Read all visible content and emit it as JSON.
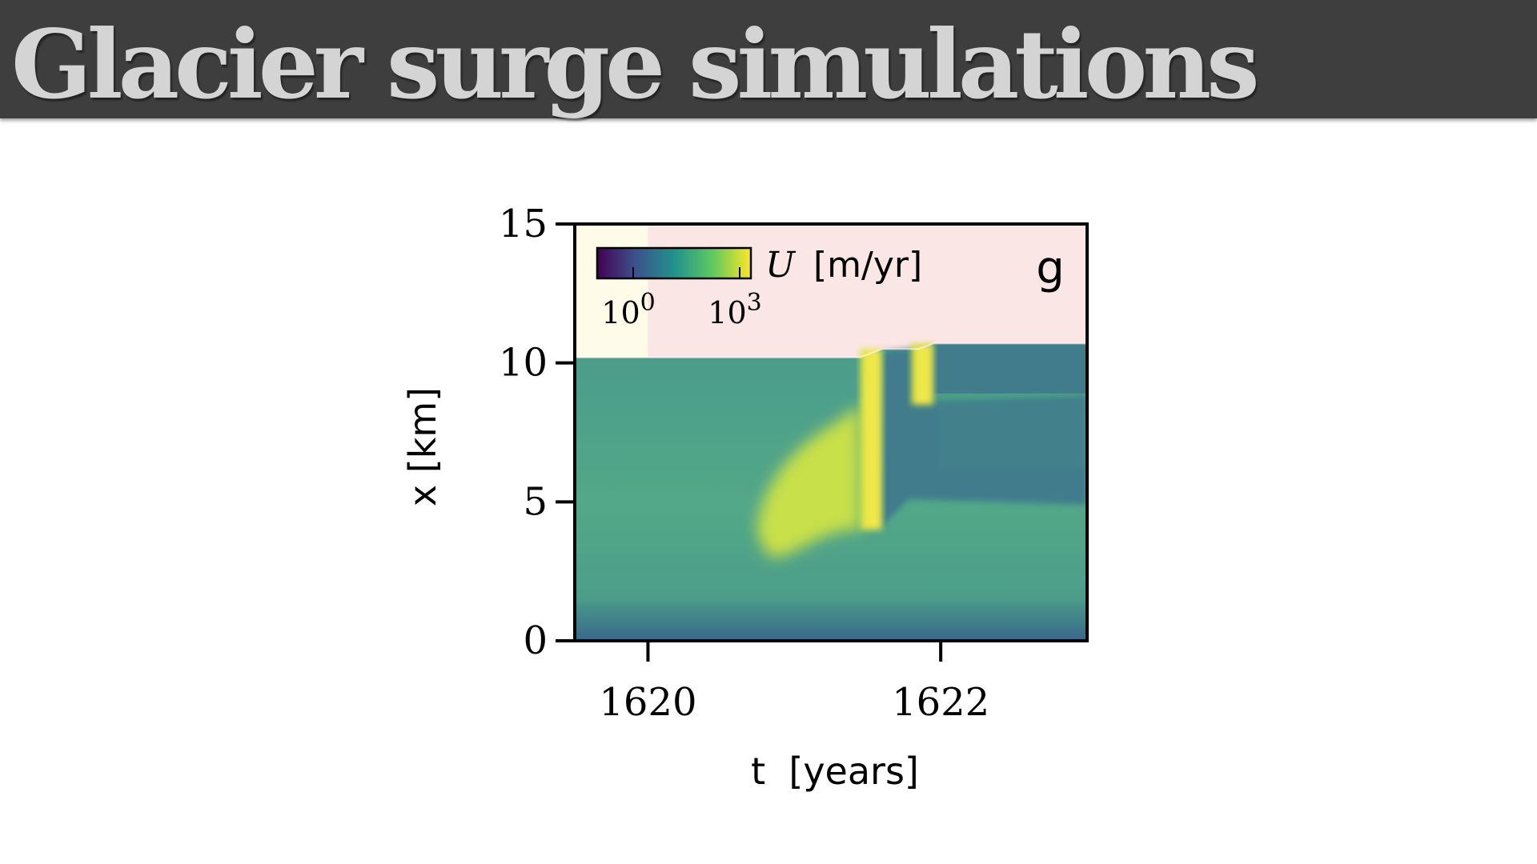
{
  "slide": {
    "title": "Glacier surge simulations"
  },
  "colors": {
    "title_bar": "#3e3e3e",
    "title_text": "#d4d4d4",
    "background_region_left": "#fefbe9",
    "background_region_right": "#fbe6e6",
    "ice_base": "#4ea488",
    "ice_bed": "#3d6f8a",
    "surge": "#c8e049",
    "surge_peak": "#f4e84a",
    "downstream_slow": "#417c8c"
  },
  "chart_data": {
    "type": "heatmap",
    "panel_label": "g",
    "xlabel": "t  [years]",
    "ylabel": "x [km]",
    "xlim": [
      1619.5,
      1623.0
    ],
    "ylim": [
      0,
      15
    ],
    "x_ticks": [
      1620,
      1622
    ],
    "x_tick_labels": [
      "1620",
      "1622"
    ],
    "y_ticks": [
      0,
      5,
      10,
      15
    ],
    "y_tick_labels": [
      "0",
      "5",
      "10",
      "15"
    ],
    "colorbar": {
      "label_symbol": "U",
      "label_unit": "[m/yr]",
      "scale": "log",
      "colormap": "viridis",
      "tick_values": [
        1,
        1000
      ],
      "tick_base": "10",
      "tick_exponents": [
        "0",
        "3"
      ],
      "placement": "top-left"
    },
    "ice_front": {
      "t": [
        1619.5,
        1621.45,
        1621.6,
        1621.85,
        1621.95,
        1623.0
      ],
      "x": [
        10.2,
        10.2,
        10.5,
        10.5,
        10.7,
        10.7
      ]
    },
    "surge_events": [
      {
        "t_start": 1620.75,
        "t_end": 1621.5,
        "x_min": 3.0,
        "x_max": 8.5,
        "description_level": "high"
      },
      {
        "t_start": 1621.45,
        "t_end": 1621.6,
        "x_min": 4.0,
        "x_max": 10.5,
        "description_level": "peak"
      },
      {
        "t_start": 1621.8,
        "t_end": 1621.95,
        "x_min": 8.5,
        "x_max": 10.7,
        "description_level": "peak"
      }
    ]
  }
}
